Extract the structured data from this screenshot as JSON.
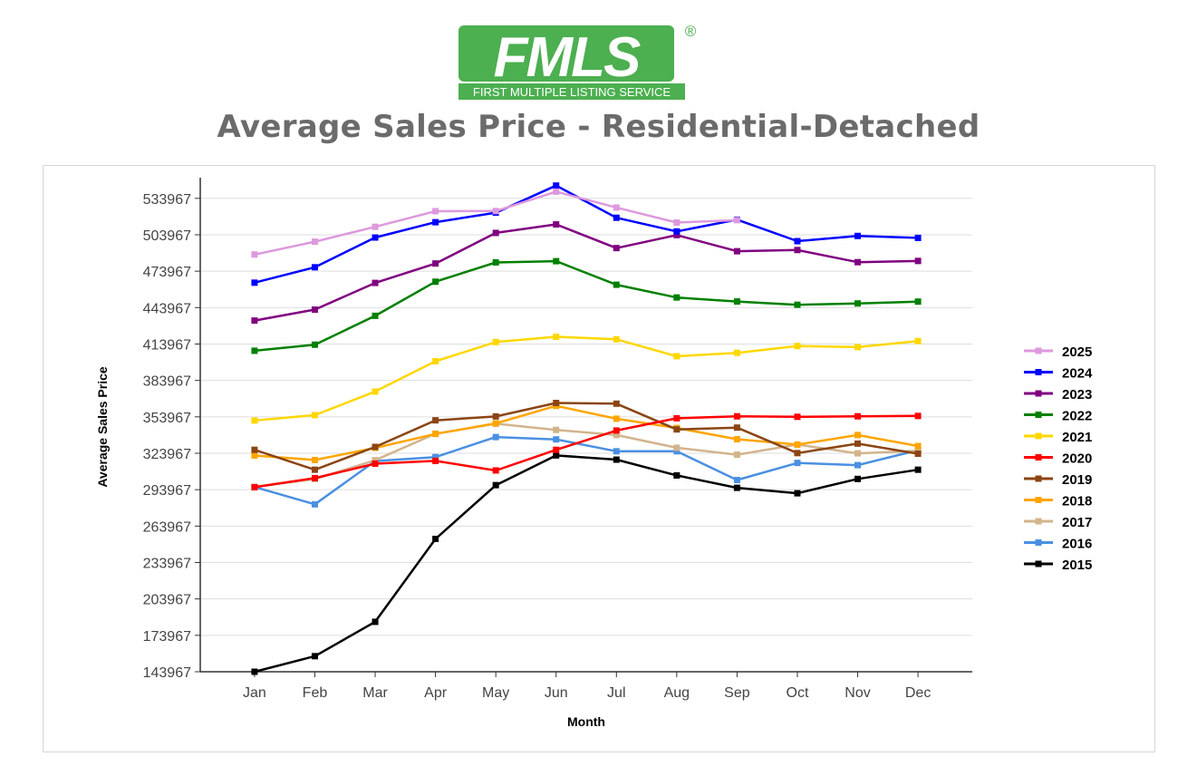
{
  "brand": {
    "logo_text": "FMLS",
    "registered_mark": "®",
    "tagline": "FIRST MULTIPLE LISTING SERVICE",
    "color": "#4caf50"
  },
  "chart_data": {
    "type": "line",
    "title": "Average Sales Price - Residential-Detached",
    "xlabel": "Month",
    "ylabel": "Average Sales Price",
    "categories": [
      "Jan",
      "Feb",
      "Mar",
      "Apr",
      "May",
      "Jun",
      "Jul",
      "Aug",
      "Sep",
      "Oct",
      "Nov",
      "Dec"
    ],
    "y_ticks": [
      143967,
      173967,
      203967,
      233967,
      263967,
      293967,
      323967,
      353967,
      383967,
      413967,
      443967,
      473967,
      503967,
      533967
    ],
    "ylim": [
      143967,
      551000
    ],
    "grid": true,
    "legend_position": "right",
    "series": [
      {
        "name": "2025",
        "color": "#dd99dd",
        "values": [
          487700,
          498300,
          510500,
          523400,
          523500,
          539500,
          526400,
          514000,
          516000,
          null,
          null,
          null
        ]
      },
      {
        "name": "2024",
        "color": "#0000ff",
        "values": [
          464500,
          477200,
          501700,
          514300,
          522200,
          544500,
          518000,
          506700,
          516400,
          498700,
          503000,
          501400
        ]
      },
      {
        "name": "2023",
        "color": "#800080",
        "values": [
          433300,
          442300,
          464300,
          480300,
          505500,
          512500,
          493000,
          503700,
          490400,
          491400,
          481400,
          482400
        ]
      },
      {
        "name": "2022",
        "color": "#008000",
        "values": [
          408400,
          413400,
          437200,
          465300,
          481200,
          482200,
          462800,
          452300,
          449000,
          446300,
          447400,
          448900
        ]
      },
      {
        "name": "2021",
        "color": "#ffd700",
        "values": [
          350900,
          355400,
          374800,
          399800,
          415600,
          419900,
          417800,
          403900,
          406700,
          412300,
          411400,
          416400
        ]
      },
      {
        "name": "2020",
        "color": "#ff0000",
        "values": [
          296000,
          303500,
          315400,
          317700,
          309800,
          326800,
          342700,
          352800,
          354400,
          354000,
          354400,
          354700
        ]
      },
      {
        "name": "2019",
        "color": "#8b4513",
        "values": [
          326800,
          310400,
          329200,
          351100,
          354300,
          365400,
          364800,
          343600,
          345100,
          324100,
          331900,
          323600
        ]
      },
      {
        "name": "2018",
        "color": "#ffa500",
        "values": [
          322100,
          318400,
          328400,
          339900,
          348600,
          363000,
          352400,
          344800,
          335500,
          331100,
          339000,
          329900
        ]
      },
      {
        "name": "2017",
        "color": "#d2b48c",
        "values": [
          296300,
          302700,
          318200,
          340100,
          348300,
          343200,
          339000,
          328500,
          322800,
          331100,
          323900,
          326000
        ]
      },
      {
        "name": "2016",
        "color": "#4a90e2",
        "values": [
          296200,
          281900,
          317500,
          320800,
          337300,
          335400,
          325600,
          325600,
          301900,
          316000,
          314200,
          326500
        ]
      },
      {
        "name": "2015",
        "color": "#000000",
        "values": [
          143967,
          156800,
          185100,
          253400,
          297700,
          322200,
          318700,
          305700,
          295500,
          291000,
          302800,
          310400
        ]
      }
    ]
  }
}
